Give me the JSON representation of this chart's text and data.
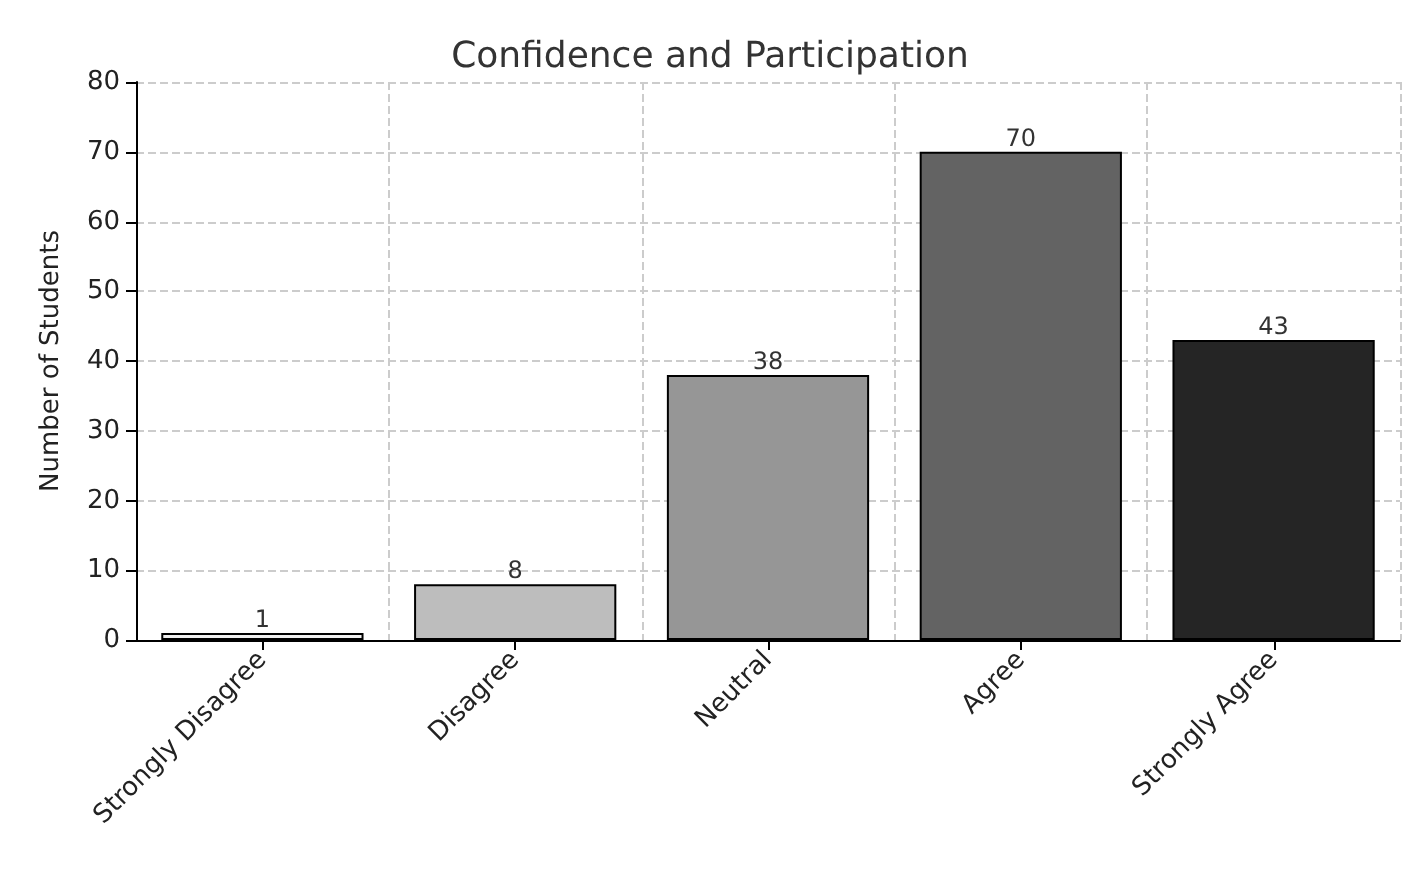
{
  "chart_data": {
    "type": "bar",
    "title": "Confidence and Participation",
    "ylabel": "Number of Students",
    "categories": [
      "Strongly Disagree",
      "Disagree",
      "Neutral",
      "Agree",
      "Strongly Agree"
    ],
    "values": [
      1,
      8,
      38,
      70,
      43
    ],
    "colors": [
      "#f0f0f0",
      "#bdbdbd",
      "#969696",
      "#636363",
      "#252525"
    ],
    "ylim": [
      0,
      80
    ],
    "yticks": [
      0,
      10,
      20,
      30,
      40,
      50,
      60,
      70,
      80
    ],
    "grid": true,
    "data_labels": true
  }
}
